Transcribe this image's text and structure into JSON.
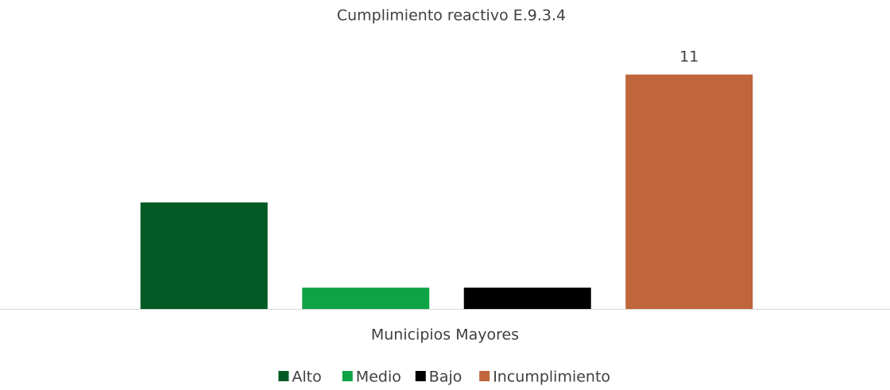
{
  "chart_data": {
    "type": "bar",
    "title": "Cumplimiento reactivo E.9.3.4",
    "categories": [
      "Municipios Mayores"
    ],
    "series": [
      {
        "name": "Alto",
        "color": "#035a24",
        "values": [
          5
        ]
      },
      {
        "name": "Medio",
        "color": "#0ea345",
        "values": [
          1
        ]
      },
      {
        "name": "Bajo",
        "color": "#000000",
        "values": [
          1
        ]
      },
      {
        "name": "Incumplimiento",
        "color": "#c0653c",
        "values": [
          11
        ],
        "value_labels": [
          "11"
        ]
      }
    ],
    "ylim": [
      0,
      12
    ],
    "legend": "bottom"
  }
}
